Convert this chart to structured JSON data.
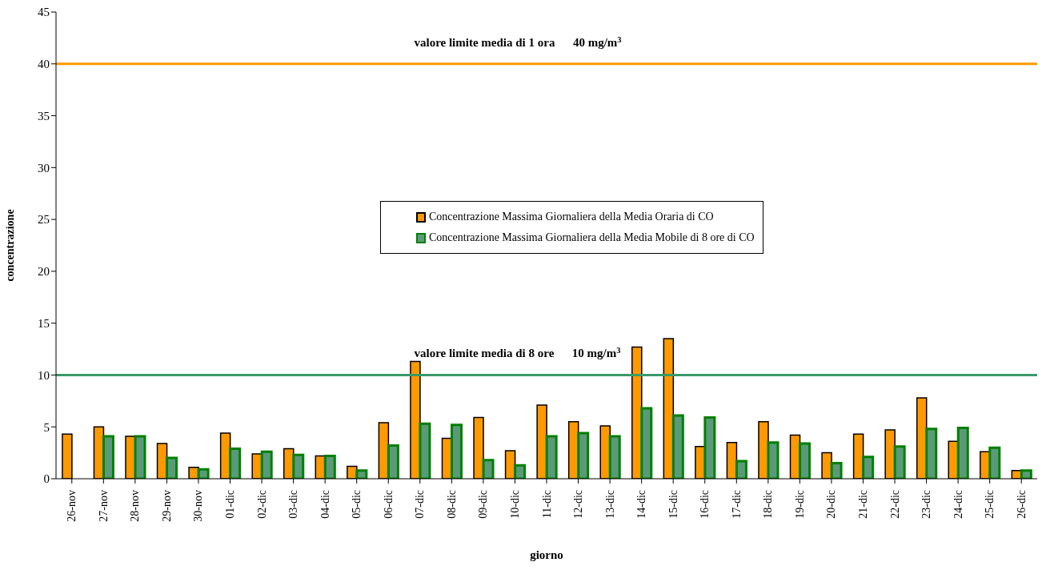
{
  "chart_data": {
    "type": "bar",
    "xlabel": "giorno",
    "ylabel": "concentrazione",
    "categories": [
      "26-nov",
      "27-nov",
      "28-nov",
      "29-nov",
      "30-nov",
      "01-dic",
      "02-dic",
      "03-dic",
      "04-dic",
      "05-dic",
      "06-dic",
      "07-dic",
      "08-dic",
      "09-dic",
      "10-dic",
      "11-dic",
      "12-dic",
      "13-dic",
      "14-dic",
      "15-dic",
      "16-dic",
      "17-dic",
      "18-dic",
      "19-dic",
      "20-dic",
      "21-dic",
      "22-dic",
      "23-dic",
      "24-dic",
      "25-dic",
      "26-dic"
    ],
    "series": [
      {
        "name": "Concentrazione Massima Giornaliera della Media Oraria di CO",
        "color": "#ff9900",
        "values": [
          4.3,
          5.0,
          4.1,
          3.4,
          1.1,
          4.4,
          2.4,
          2.9,
          2.2,
          1.2,
          5.4,
          11.3,
          3.9,
          5.9,
          2.7,
          7.1,
          5.5,
          5.1,
          12.7,
          13.5,
          3.1,
          3.5,
          5.5,
          4.2,
          2.5,
          4.3,
          4.7,
          7.8,
          3.6,
          2.6,
          0.8
        ]
      },
      {
        "name": "Concentrazione Massima Giornaliera della Media Mobile di 8 ore di CO",
        "color": "#5a9a7a",
        "values": [
          null,
          4.1,
          4.1,
          2.0,
          0.9,
          2.9,
          2.6,
          2.3,
          2.2,
          0.8,
          3.2,
          5.3,
          5.2,
          1.8,
          1.3,
          4.1,
          4.4,
          4.1,
          6.8,
          6.1,
          5.9,
          1.7,
          3.5,
          3.4,
          1.5,
          2.1,
          3.1,
          4.8,
          4.9,
          3.0,
          0.8
        ]
      }
    ],
    "ylim": [
      0,
      45
    ],
    "yticks": [
      0,
      5,
      10,
      15,
      20,
      25,
      30,
      35,
      40,
      45
    ],
    "grid": false,
    "legend": "center",
    "ref_lines": [
      {
        "axis": "y",
        "value": 40,
        "label": "valore limite media di 1 ora      40 mg/m$^{3}$",
        "color": "#ff9900"
      },
      {
        "axis": "y",
        "value": 10,
        "label": "valore limite media di 8 ore      10 mg/m$^{3}$",
        "color": "#3a9a6a"
      }
    ]
  }
}
